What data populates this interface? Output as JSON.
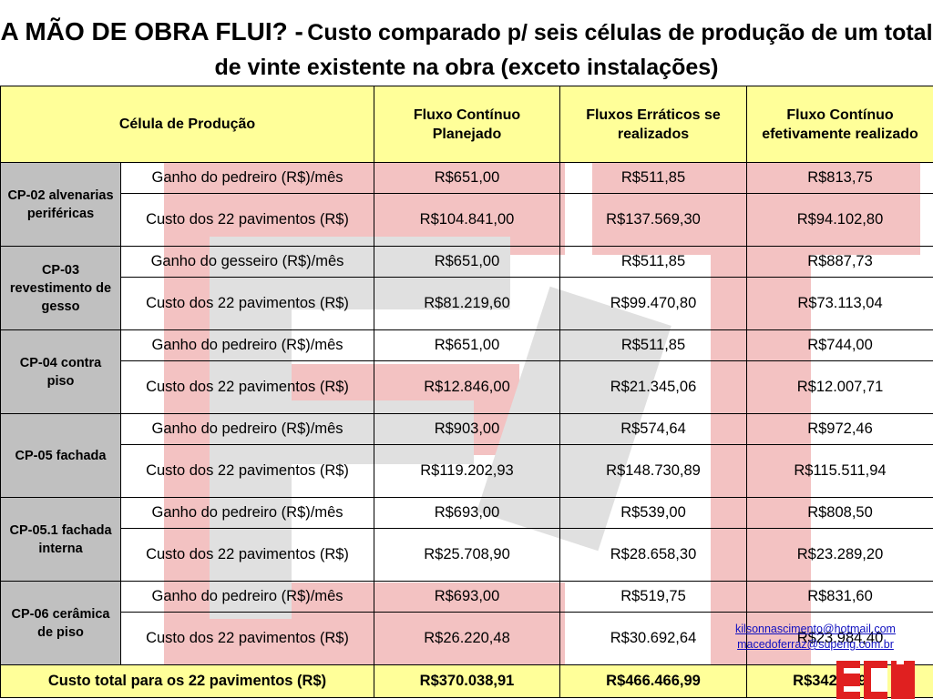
{
  "title": {
    "bold_part": "A MÃO DE OBRA FLUI? -",
    "rest": "Custo comparado p/ seis células de produção de um total de vinte existente na obra (exceto instalações)"
  },
  "header": {
    "col_cell": "Célula de Produção",
    "col_planned": "Fluxo Contínuo Planejado",
    "col_erratic": "Fluxos Erráticos se realizados",
    "col_effective": "Fluxo Contínuo efetivamente realizado"
  },
  "rows": [
    {
      "cell": "CP-02 alvenarias periféricas",
      "metric1": "Ganho do pedreiro (R$)/mês",
      "v1": [
        "R$651,00",
        "R$511,85",
        "R$813,75"
      ],
      "metric2": "Custo dos 22 pavimentos (R$)",
      "v2": [
        "R$104.841,00",
        "R$137.569,30",
        "R$94.102,80"
      ]
    },
    {
      "cell": "CP-03 revestimento de gesso",
      "metric1": "Ganho do gesseiro (R$)/mês",
      "v1": [
        "R$651,00",
        "R$511,85",
        "R$887,73"
      ],
      "metric2": "Custo dos 22 pavimentos (R$)",
      "v2": [
        "R$81.219,60",
        "R$99.470,80",
        "R$73.113,04"
      ]
    },
    {
      "cell": "CP-04 contra piso",
      "metric1": "Ganho do pedreiro (R$)/mês",
      "v1": [
        "R$651,00",
        "R$511,85",
        "R$744,00"
      ],
      "metric2": "Custo dos 22 pavimentos (R$)",
      "v2": [
        "R$12.846,00",
        "R$21.345,06",
        "R$12.007,71"
      ]
    },
    {
      "cell": "CP-05 fachada",
      "metric1": "Ganho do pedreiro (R$)/mês",
      "v1": [
        "R$903,00",
        "R$574,64",
        "R$972,46"
      ],
      "metric2": "Custo dos 22 pavimentos (R$)",
      "v2": [
        "R$119.202,93",
        "R$148.730,89",
        "R$115.511,94"
      ]
    },
    {
      "cell": "CP-05.1 fachada interna",
      "metric1": "Ganho do pedreiro (R$)/mês",
      "v1": [
        "R$693,00",
        "R$539,00",
        "R$808,50"
      ],
      "metric2": "Custo dos 22 pavimentos (R$)",
      "v2": [
        "R$25.708,90",
        "R$28.658,30",
        "R$23.289,20"
      ]
    },
    {
      "cell": "CP-06 cerâmica de piso",
      "metric1": "Ganho do pedreiro (R$)/mês",
      "v1": [
        "R$693,00",
        "R$519,75",
        "R$831,60"
      ],
      "metric2": "Custo dos 22 pavimentos (R$)",
      "v2": [
        "R$26.220,48",
        "R$30.692,64",
        "R$23.984,40"
      ]
    }
  ],
  "total": {
    "label": "Custo total para os 22 pavimentos (R$)",
    "values": [
      "R$370.038,91",
      "R$466.466,99",
      "R$342.009,09"
    ]
  },
  "emails": [
    "kilsonnascimento@hotmail.com",
    "macedoferraz@superig.com.br"
  ],
  "logo": "ECI"
}
